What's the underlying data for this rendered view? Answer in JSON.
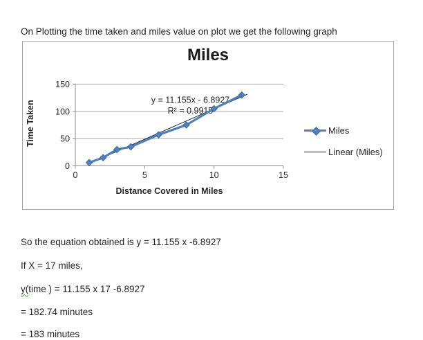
{
  "body": {
    "intro": "On Plotting the time taken and miles value on plot we get the following graph",
    "equation_line": "So the equation obtained is y = 11.155 x -6.8927",
    "if_line": "If X = 17 miles,",
    "y_line_prefix": "y(",
    "y_line_rest": "time ) = 11.155 x 17 -6.8927",
    "result_line1": "= 182.74 minutes",
    "result_line2": "= 183 minutes"
  },
  "chart_data": {
    "type": "line",
    "title": "Miles",
    "xlabel": "Distance Covered in Miles",
    "ylabel": "Time Taken",
    "x": [
      1,
      2,
      3,
      4,
      6,
      8,
      10,
      12
    ],
    "series": [
      {
        "name": "Miles",
        "values": [
          6,
          15,
          30,
          35,
          57,
          75,
          105,
          130
        ]
      }
    ],
    "xlim": [
      0,
      15
    ],
    "ylim": [
      0,
      150
    ],
    "xticks": [
      0,
      5,
      10,
      15
    ],
    "yticks": [
      0,
      50,
      100,
      150
    ],
    "grid": "horizontal-only",
    "legend_position": "right-middle",
    "legend": [
      "Miles",
      "Linear (Miles)"
    ],
    "trendline": {
      "name": "Linear (Miles)",
      "slope": 11.155,
      "intercept": -6.8927,
      "x_range": [
        1,
        12.4
      ],
      "equation": "y = 11.155x - 6.8927",
      "r_squared": "R² = 0.9915"
    },
    "colors": {
      "series": "#4f81bd",
      "marker_edge": "#3f689b",
      "trendline": "#1f1f1f",
      "gridline": "#a6a6a6",
      "axis": "#8c8c8c",
      "tick_text": "#262626"
    }
  }
}
